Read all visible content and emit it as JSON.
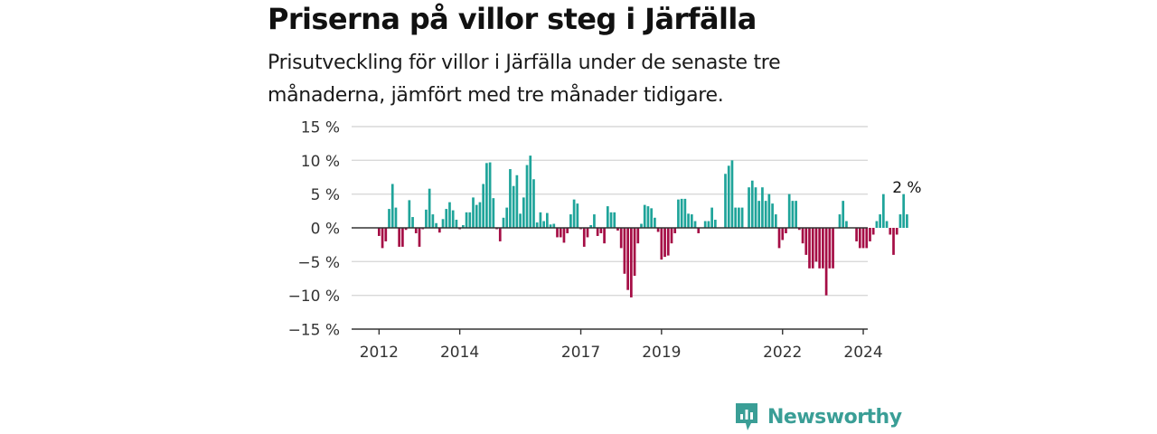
{
  "title": "Priserna på villor steg i Järfälla",
  "subtitle": "Prisutveckling för villor i Järfälla under de senaste tre månaderna, jämfört med tre månader tidigare.",
  "logo_text": "Newsworthy",
  "colors": {
    "positive": "#1fa49a",
    "negative": "#a50d45",
    "grid": "#d9d9d9",
    "axis": "#333333"
  },
  "chart_data": {
    "type": "bar",
    "title": "Priserna på villor steg i Järfälla",
    "subtitle": "Prisutveckling för villor i Järfälla under de senaste tre månaderna, jämfört med tre månader tidigare.",
    "xlabel": "",
    "ylabel": "",
    "x_ticks": [
      "2012",
      "2014",
      "2017",
      "2019",
      "2022",
      "2024"
    ],
    "y_ticks": [
      "15 %",
      "10 %",
      "5 %",
      "0 %",
      "−5 %",
      "−10 %",
      "−15 %"
    ],
    "ylim": [
      -15,
      15
    ],
    "grid": true,
    "start_period": "2012-01",
    "period": "month",
    "annotation": {
      "text": "2 %",
      "target": "last"
    },
    "values": [
      -1.2,
      -3.0,
      -2.0,
      2.8,
      6.5,
      3.0,
      -2.8,
      -2.8,
      -0.3,
      4.1,
      1.6,
      -0.8,
      -2.8,
      -0.2,
      2.7,
      5.8,
      2.0,
      0.7,
      -0.7,
      1.3,
      2.8,
      3.8,
      2.6,
      1.2,
      -0.2,
      0.4,
      2.3,
      2.3,
      4.5,
      3.4,
      3.8,
      6.5,
      9.6,
      9.7,
      4.4,
      -0.2,
      -2.0,
      1.5,
      3.0,
      8.7,
      6.2,
      7.8,
      2.1,
      4.5,
      9.3,
      10.7,
      7.2,
      0.8,
      2.3,
      1.0,
      2.2,
      0.5,
      0.6,
      -1.4,
      -1.4,
      -2.2,
      -0.8,
      2.0,
      4.2,
      3.6,
      -0.2,
      -2.8,
      -1.4,
      0.4,
      2.0,
      -1.2,
      -0.8,
      -2.3,
      3.2,
      2.3,
      2.3,
      -0.4,
      -3.0,
      -6.8,
      -9.2,
      -10.3,
      -7.1,
      -2.3,
      0.6,
      3.4,
      3.2,
      2.9,
      1.5,
      -0.6,
      -4.7,
      -4.3,
      -4.1,
      -2.3,
      -0.8,
      4.2,
      4.3,
      4.3,
      2.1,
      2.0,
      1.0,
      -0.8,
      0.0,
      1.0,
      1.0,
      3.0,
      1.2,
      0.0,
      0.0,
      8.0,
      9.2,
      10.0,
      3.0,
      3.0,
      3.0,
      0.0,
      6.0,
      7.0,
      6.0,
      4.0,
      6.0,
      4.0,
      5.0,
      3.6,
      2.0,
      -3.0,
      -1.8,
      -0.8,
      5.0,
      4.0,
      4.0,
      -0.3,
      -2.3,
      -4.0,
      -6.0,
      -6.0,
      -5.0,
      -6.0,
      -6.0,
      -10.0,
      -6.0,
      -6.0,
      0.0,
      2.0,
      4.0,
      1.0,
      0.0,
      0.0,
      -2.0,
      -3.0,
      -3.0,
      -3.0,
      -2.0,
      -1.0,
      1.0,
      2.0,
      5.0,
      1.0,
      -1.0,
      -4.0,
      -1.0,
      2.0,
      5.0,
      2.0
    ]
  }
}
